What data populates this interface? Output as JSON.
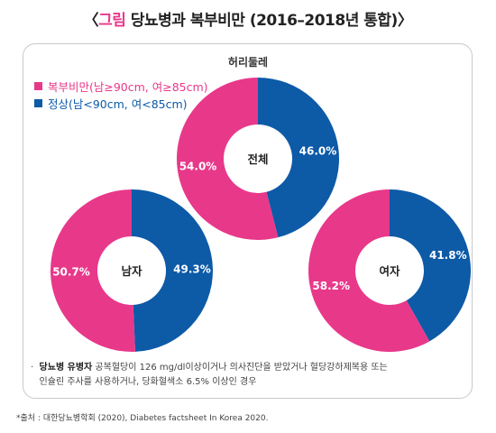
{
  "header": {
    "prefix": "〈",
    "highlight": "그림",
    "title": " 당뇨병과 복부비만 (2016–2018년 통합)",
    "suffix": "〉"
  },
  "panel": {
    "title": "허리둘레"
  },
  "legend": [
    {
      "label": "복부비만(남≥90cm, 여≥85cm)",
      "color": "#e8388a"
    },
    {
      "label": "정상(남<90cm, 여<85cm)",
      "color": "#0d5aa7"
    }
  ],
  "chart_data": [
    {
      "type": "pie",
      "center_label": "전체",
      "categories": [
        "복부비만",
        "정상"
      ],
      "values": [
        54.0,
        46.0
      ],
      "value_labels": [
        "54.0%",
        "46.0%"
      ],
      "colors": [
        "#e8388a",
        "#0d5aa7"
      ]
    },
    {
      "type": "pie",
      "center_label": "남자",
      "categories": [
        "복부비만",
        "정상"
      ],
      "values": [
        50.7,
        49.3
      ],
      "value_labels": [
        "50.7%",
        "49.3%"
      ],
      "colors": [
        "#e8388a",
        "#0d5aa7"
      ]
    },
    {
      "type": "pie",
      "center_label": "여자",
      "categories": [
        "복부비만",
        "정상"
      ],
      "values": [
        58.2,
        41.8
      ],
      "value_labels": [
        "58.2%",
        "41.8%"
      ],
      "colors": [
        "#e8388a",
        "#0d5aa7"
      ]
    }
  ],
  "note": {
    "bullet": "·",
    "term": "당뇨병 유병자",
    "line1": " 공복혈당이 126 mg/dl이상이거나 의사진단을 받았거나 혈당강하제복용 또는",
    "line2": "인슐린 주사를 사용하거나, 당화혈색소 6.5% 이상인 경우"
  },
  "source": "*출처 : 대한당뇨병학회 (2020), Diabetes factsheet In Korea 2020."
}
